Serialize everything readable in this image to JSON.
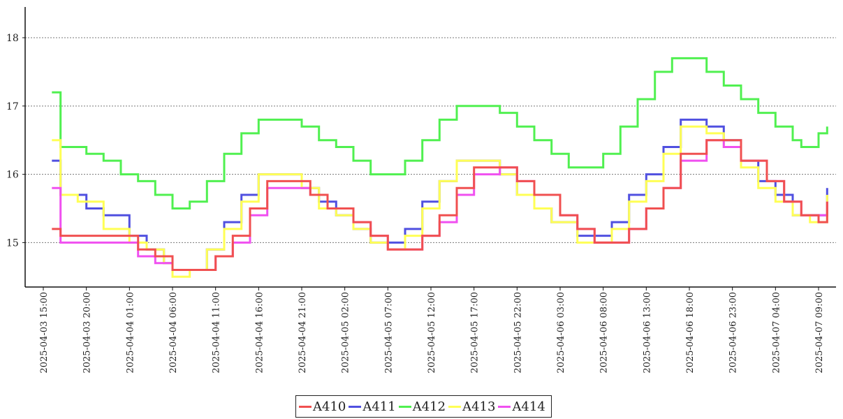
{
  "chart_data": {
    "type": "line",
    "title": "",
    "xlabel": "",
    "ylabel": "",
    "ylim": [
      14.35,
      18.45
    ],
    "y_ticks": [
      "15",
      "16",
      "17",
      "18"
    ],
    "x_ticks": [
      "2025-04-03 15:00",
      "2025-04-03 20:00",
      "2025-04-04 01:00",
      "2025-04-04 06:00",
      "2025-04-04 11:00",
      "2025-04-04 16:00",
      "2025-04-04 21:00",
      "2025-04-05 02:00",
      "2025-04-05 07:00",
      "2025-04-05 12:00",
      "2025-04-05 17:00",
      "2025-04-05 22:00",
      "2025-04-06 03:00",
      "2025-04-06 08:00",
      "2025-04-06 13:00",
      "2025-04-06 18:00",
      "2025-04-06 23:00",
      "2025-04-07 04:00",
      "2025-04-07 09:00"
    ],
    "grid": true,
    "legend_position": "bottom-center",
    "series": [
      {
        "name": "A410",
        "color": "#f05050",
        "x": [
          "2025-04-03 16:00",
          "2025-04-03 17:00",
          "2025-04-03 22:00",
          "2025-04-04 02:00",
          "2025-04-04 04:00",
          "2025-04-04 06:00",
          "2025-04-04 08:00",
          "2025-04-04 11:00",
          "2025-04-04 13:00",
          "2025-04-04 15:00",
          "2025-04-04 17:00",
          "2025-04-04 20:00",
          "2025-04-04 22:00",
          "2025-04-05 00:00",
          "2025-04-05 03:00",
          "2025-04-05 05:00",
          "2025-04-05 07:00",
          "2025-04-05 09:00",
          "2025-04-05 11:00",
          "2025-04-05 13:00",
          "2025-04-05 15:00",
          "2025-04-05 17:00",
          "2025-04-05 20:00",
          "2025-04-05 22:00",
          "2025-04-06 00:00",
          "2025-04-06 03:00",
          "2025-04-06 05:00",
          "2025-04-06 07:00",
          "2025-04-06 09:00",
          "2025-04-06 11:00",
          "2025-04-06 13:00",
          "2025-04-06 15:00",
          "2025-04-06 17:00",
          "2025-04-06 20:00",
          "2025-04-06 22:00",
          "2025-04-07 00:00",
          "2025-04-07 03:00",
          "2025-04-07 05:00",
          "2025-04-07 07:00",
          "2025-04-07 09:00",
          "2025-04-07 10:00"
        ],
        "values": [
          15.2,
          15.1,
          15.1,
          14.9,
          14.8,
          14.6,
          14.6,
          14.8,
          15.1,
          15.5,
          15.9,
          15.9,
          15.7,
          15.5,
          15.3,
          15.1,
          14.9,
          14.9,
          15.1,
          15.4,
          15.8,
          16.1,
          16.1,
          15.9,
          15.7,
          15.4,
          15.2,
          15.0,
          15.0,
          15.2,
          15.5,
          15.8,
          16.3,
          16.5,
          16.5,
          16.2,
          15.9,
          15.6,
          15.4,
          15.3,
          15.6
        ]
      },
      {
        "name": "A411",
        "color": "#5050e0",
        "x": [
          "2025-04-03 16:00",
          "2025-04-03 17:00",
          "2025-04-03 20:00",
          "2025-04-03 22:00",
          "2025-04-04 01:00",
          "2025-04-04 03:00",
          "2025-04-04 05:00",
          "2025-04-04 06:00",
          "2025-04-04 08:00",
          "2025-04-04 10:00",
          "2025-04-04 12:00",
          "2025-04-04 14:00",
          "2025-04-04 16:00",
          "2025-04-04 18:00",
          "2025-04-04 21:00",
          "2025-04-04 23:00",
          "2025-04-05 01:00",
          "2025-04-05 03:00",
          "2025-04-05 05:00",
          "2025-04-05 07:00",
          "2025-04-05 09:00",
          "2025-04-05 11:00",
          "2025-04-05 13:00",
          "2025-04-05 15:00",
          "2025-04-05 17:00",
          "2025-04-05 20:00",
          "2025-04-05 22:00",
          "2025-04-06 00:00",
          "2025-04-06 02:00",
          "2025-04-06 05:00",
          "2025-04-06 07:00",
          "2025-04-06 09:00",
          "2025-04-06 11:00",
          "2025-04-06 13:00",
          "2025-04-06 15:00",
          "2025-04-06 17:00",
          "2025-04-06 20:00",
          "2025-04-06 22:00",
          "2025-04-07 00:00",
          "2025-04-07 02:00",
          "2025-04-07 04:00",
          "2025-04-07 06:00",
          "2025-04-07 08:00",
          "2025-04-07 10:00"
        ],
        "values": [
          16.2,
          15.7,
          15.5,
          15.4,
          15.1,
          14.9,
          14.7,
          14.6,
          14.6,
          14.9,
          15.3,
          15.7,
          16.0,
          16.0,
          15.8,
          15.6,
          15.4,
          15.2,
          15.0,
          15.0,
          15.2,
          15.6,
          15.9,
          16.2,
          16.2,
          16.0,
          15.7,
          15.5,
          15.3,
          15.1,
          15.1,
          15.3,
          15.7,
          16.0,
          16.4,
          16.8,
          16.7,
          16.5,
          16.2,
          15.9,
          15.7,
          15.4,
          15.4,
          15.8
        ]
      },
      {
        "name": "A412",
        "color": "#50f050",
        "x": [
          "2025-04-03 16:00",
          "2025-04-03 17:00",
          "2025-04-03 20:00",
          "2025-04-03 22:00",
          "2025-04-04 00:00",
          "2025-04-04 02:00",
          "2025-04-04 04:00",
          "2025-04-04 06:00",
          "2025-04-04 08:00",
          "2025-04-04 10:00",
          "2025-04-04 12:00",
          "2025-04-04 14:00",
          "2025-04-04 16:00",
          "2025-04-04 18:00",
          "2025-04-04 21:00",
          "2025-04-04 23:00",
          "2025-04-05 01:00",
          "2025-04-05 03:00",
          "2025-04-05 05:00",
          "2025-04-05 07:00",
          "2025-04-05 09:00",
          "2025-04-05 11:00",
          "2025-04-05 13:00",
          "2025-04-05 15:00",
          "2025-04-05 17:00",
          "2025-04-05 20:00",
          "2025-04-05 22:00",
          "2025-04-06 00:00",
          "2025-04-06 02:00",
          "2025-04-06 04:00",
          "2025-04-06 06:00",
          "2025-04-06 08:00",
          "2025-04-06 10:00",
          "2025-04-06 12:00",
          "2025-04-06 14:00",
          "2025-04-06 16:00",
          "2025-04-06 18:00",
          "2025-04-06 20:00",
          "2025-04-06 22:00",
          "2025-04-07 00:00",
          "2025-04-07 02:00",
          "2025-04-07 04:00",
          "2025-04-07 06:00",
          "2025-04-07 07:00",
          "2025-04-07 09:00",
          "2025-04-07 10:00"
        ],
        "values": [
          17.2,
          16.4,
          16.3,
          16.2,
          16.0,
          15.9,
          15.7,
          15.5,
          15.6,
          15.9,
          16.3,
          16.6,
          16.8,
          16.8,
          16.7,
          16.5,
          16.4,
          16.2,
          16.0,
          16.0,
          16.2,
          16.5,
          16.8,
          17.0,
          17.0,
          16.9,
          16.7,
          16.5,
          16.3,
          16.1,
          16.1,
          16.3,
          16.7,
          17.1,
          17.5,
          17.7,
          17.7,
          17.5,
          17.3,
          17.1,
          16.9,
          16.7,
          16.5,
          16.4,
          16.6,
          16.7
        ]
      },
      {
        "name": "A413",
        "color": "#ffff55",
        "x": [
          "2025-04-03 16:00",
          "2025-04-03 17:00",
          "2025-04-03 19:00",
          "2025-04-03 22:00",
          "2025-04-04 01:00",
          "2025-04-04 03:00",
          "2025-04-04 05:00",
          "2025-04-04 06:00",
          "2025-04-04 08:00",
          "2025-04-04 10:00",
          "2025-04-04 12:00",
          "2025-04-04 14:00",
          "2025-04-04 16:00",
          "2025-04-04 18:00",
          "2025-04-04 21:00",
          "2025-04-04 23:00",
          "2025-04-05 01:00",
          "2025-04-05 03:00",
          "2025-04-05 05:00",
          "2025-04-05 07:00",
          "2025-04-05 09:00",
          "2025-04-05 11:00",
          "2025-04-05 13:00",
          "2025-04-05 15:00",
          "2025-04-05 17:00",
          "2025-04-05 20:00",
          "2025-04-05 22:00",
          "2025-04-06 00:00",
          "2025-04-06 02:00",
          "2025-04-06 05:00",
          "2025-04-06 07:00",
          "2025-04-06 09:00",
          "2025-04-06 11:00",
          "2025-04-06 13:00",
          "2025-04-06 15:00",
          "2025-04-06 17:00",
          "2025-04-06 20:00",
          "2025-04-06 22:00",
          "2025-04-07 00:00",
          "2025-04-07 02:00",
          "2025-04-07 04:00",
          "2025-04-07 06:00",
          "2025-04-07 08:00",
          "2025-04-07 10:00"
        ],
        "values": [
          16.5,
          15.7,
          15.6,
          15.2,
          15.0,
          14.9,
          14.7,
          14.5,
          14.6,
          14.9,
          15.2,
          15.6,
          16.0,
          16.0,
          15.8,
          15.5,
          15.4,
          15.2,
          15.0,
          14.9,
          15.1,
          15.5,
          15.9,
          16.2,
          16.2,
          16.0,
          15.7,
          15.5,
          15.3,
          15.0,
          15.0,
          15.2,
          15.6,
          15.9,
          16.3,
          16.7,
          16.6,
          16.4,
          16.1,
          15.8,
          15.6,
          15.4,
          15.3,
          15.7
        ]
      },
      {
        "name": "A414",
        "color": "#f050f0",
        "x": [
          "2025-04-03 16:00",
          "2025-04-03 17:00",
          "2025-04-03 22:00",
          "2025-04-04 02:00",
          "2025-04-04 04:00",
          "2025-04-04 06:00",
          "2025-04-04 09:00",
          "2025-04-04 11:00",
          "2025-04-04 13:00",
          "2025-04-04 15:00",
          "2025-04-04 17:00",
          "2025-04-04 20:00",
          "2025-04-04 22:00",
          "2025-04-05 00:00",
          "2025-04-05 03:00",
          "2025-04-05 05:00",
          "2025-04-05 07:00",
          "2025-04-05 09:00",
          "2025-04-05 11:00",
          "2025-04-05 13:00",
          "2025-04-05 15:00",
          "2025-04-05 17:00",
          "2025-04-05 20:00",
          "2025-04-05 22:00",
          "2025-04-06 00:00",
          "2025-04-06 03:00",
          "2025-04-06 05:00",
          "2025-04-06 07:00",
          "2025-04-06 09:00",
          "2025-04-06 11:00",
          "2025-04-06 13:00",
          "2025-04-06 15:00",
          "2025-04-06 17:00",
          "2025-04-06 20:00",
          "2025-04-06 22:00",
          "2025-04-07 00:00",
          "2025-04-07 03:00",
          "2025-04-07 05:00",
          "2025-04-07 07:00",
          "2025-04-07 09:00",
          "2025-04-07 10:00"
        ],
        "values": [
          15.8,
          15.0,
          15.0,
          14.8,
          14.7,
          14.6,
          14.6,
          14.8,
          15.0,
          15.4,
          15.8,
          15.8,
          15.7,
          15.5,
          15.3,
          15.1,
          14.9,
          14.9,
          15.1,
          15.3,
          15.7,
          16.0,
          16.1,
          15.9,
          15.7,
          15.4,
          15.2,
          15.0,
          15.0,
          15.2,
          15.5,
          15.8,
          16.2,
          16.5,
          16.4,
          16.2,
          15.9,
          15.6,
          15.4,
          15.4,
          15.6
        ]
      }
    ]
  }
}
